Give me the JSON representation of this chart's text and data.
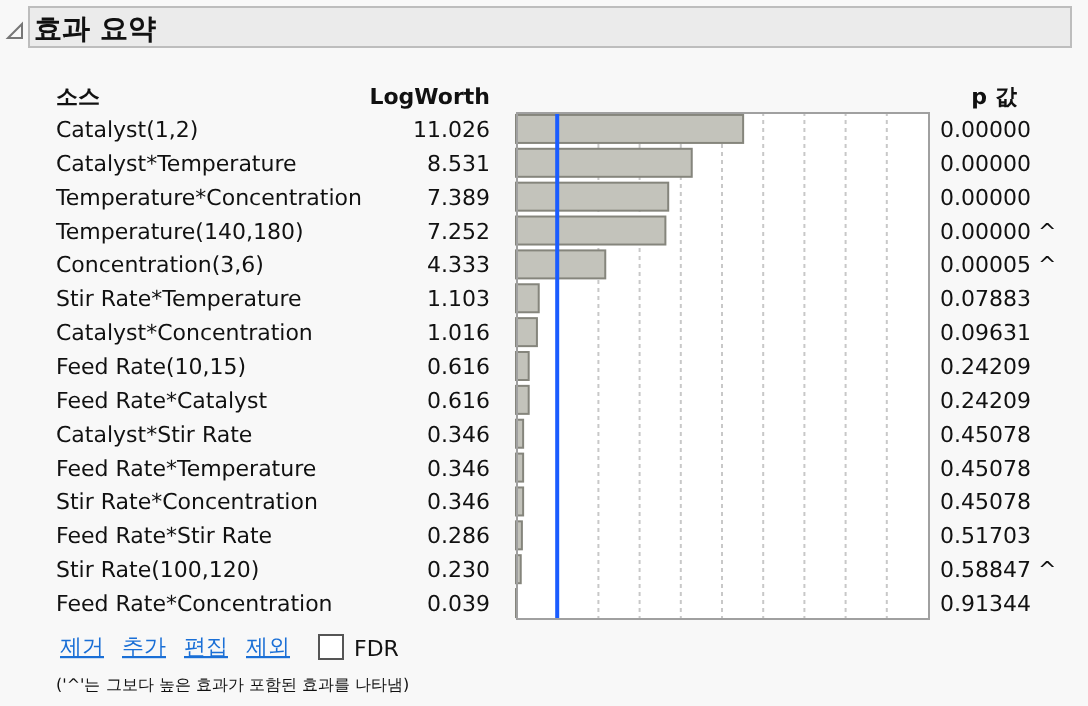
{
  "chart_data": {
    "type": "bar",
    "orientation": "horizontal",
    "title": "효과 요약",
    "ylabel": "소스",
    "xlabel": "LogWorth",
    "categories": [
      "Catalyst(1,2)",
      "Catalyst*Temperature",
      "Temperature*Concentration",
      "Temperature(140,180)",
      "Concentration(3,6)",
      "Stir Rate*Temperature",
      "Catalyst*Concentration",
      "Feed Rate(10,15)",
      "Feed Rate*Catalyst",
      "Catalyst*Stir Rate",
      "Feed Rate*Temperature",
      "Stir Rate*Concentration",
      "Feed Rate*Stir Rate",
      "Stir Rate(100,120)",
      "Feed Rate*Concentration"
    ],
    "values": [
      11.026,
      8.531,
      7.389,
      7.252,
      4.333,
      1.103,
      1.016,
      0.616,
      0.616,
      0.346,
      0.346,
      0.346,
      0.286,
      0.23,
      0.039
    ],
    "value_labels": [
      "11.026",
      "8.531",
      "7.389",
      "7.252",
      "4.333",
      "1.103",
      "1.016",
      "0.616",
      "0.616",
      "0.346",
      "0.346",
      "0.346",
      "0.286",
      "0.230",
      "0.039"
    ],
    "color": "#c3c3bb",
    "xlim": [
      0,
      20
    ],
    "xticks": [
      {
        "value": 0,
        "label": null
      },
      {
        "value": 2,
        "label": null
      },
      {
        "value": 4,
        "label": null
      },
      {
        "value": 6,
        "label": null
      },
      {
        "value": 8,
        "label": null
      },
      {
        "value": 10,
        "label": null
      },
      {
        "value": 12,
        "label": null
      },
      {
        "value": 14,
        "label": null
      },
      {
        "value": 16,
        "label": null
      },
      {
        "value": 18,
        "label": null
      },
      {
        "value": 20,
        "label": null
      }
    ],
    "grid": "x",
    "ref_lines": [
      {
        "axis": "x",
        "value": 2,
        "color": "#1a5cff"
      }
    ],
    "annotations": [
      "p 값",
      "0.00000",
      "0.00000",
      "0.00000",
      "0.00000 ^",
      "0.00005 ^",
      "0.07883",
      "0.09631",
      "0.24209",
      "0.24209",
      "0.45078",
      "0.45078",
      "0.45078",
      "0.51703",
      "0.58847 ^",
      "0.91344",
      "제거",
      "추가",
      "편집",
      "제외",
      "FDR",
      "('^'는 그보다 높은 효과가 포함된 효과를 나타냄)"
    ]
  }
}
